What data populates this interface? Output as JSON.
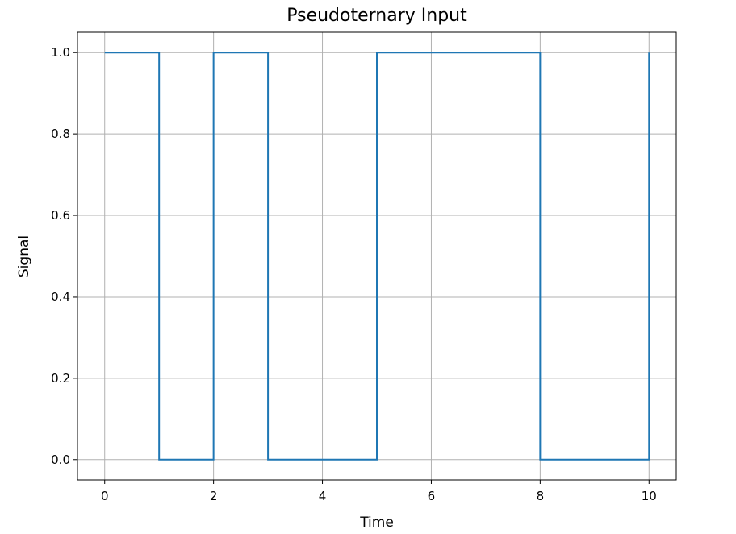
{
  "chart_data": {
    "type": "line",
    "drawstyle": "steps-post",
    "title": "Pseudoternary Input",
    "xlabel": "Time",
    "ylabel": "Signal",
    "xlim": [
      -0.5,
      10.5
    ],
    "ylim": [
      -0.05,
      1.05
    ],
    "grid": true,
    "x_ticks": [
      0,
      2,
      4,
      6,
      8,
      10
    ],
    "x_tick_labels": [
      "0",
      "2",
      "4",
      "6",
      "8",
      "10"
    ],
    "y_ticks": [
      0.0,
      0.2,
      0.4,
      0.6,
      0.8,
      1.0
    ],
    "y_tick_labels": [
      "0.0",
      "0.2",
      "0.4",
      "0.6",
      "0.8",
      "1.0"
    ],
    "series": [
      {
        "color": "#1f77b4",
        "x": [
          0,
          1,
          2,
          3,
          4,
          5,
          6,
          7,
          8,
          9,
          10
        ],
        "y": [
          1,
          0,
          1,
          0,
          0,
          1,
          1,
          1,
          0,
          0,
          1
        ]
      }
    ]
  }
}
